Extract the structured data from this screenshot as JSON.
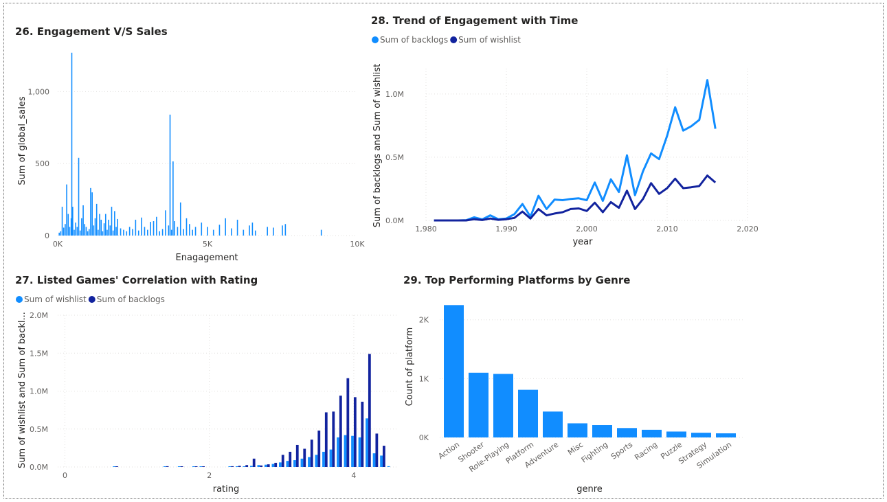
{
  "colors": {
    "light": "#118dff",
    "dark": "#12239e"
  },
  "chart_data": [
    {
      "id": "engagement_vs_sales",
      "type": "bar",
      "title": "26. Engagement V/S Sales",
      "xlabel": "Enagagement",
      "ylabel": "Sum of global_sales",
      "xlim": [
        0,
        10000
      ],
      "ylim": [
        0,
        1350
      ],
      "xticks": [
        {
          "v": 0,
          "label": "0K"
        },
        {
          "v": 5000,
          "label": "5K"
        },
        {
          "v": 10000,
          "label": "10K"
        }
      ],
      "yticks": [
        {
          "v": 0,
          "label": "0"
        },
        {
          "v": 500,
          "label": "500"
        },
        {
          "v": 1000,
          "label": "1,000"
        }
      ],
      "x": [
        50,
        100,
        150,
        200,
        250,
        300,
        350,
        400,
        450,
        470,
        500,
        550,
        600,
        650,
        700,
        750,
        800,
        850,
        900,
        950,
        1000,
        1050,
        1100,
        1150,
        1200,
        1250,
        1300,
        1350,
        1400,
        1450,
        1500,
        1550,
        1600,
        1650,
        1700,
        1750,
        1800,
        1850,
        1900,
        1950,
        2000,
        2100,
        2200,
        2300,
        2400,
        2500,
        2600,
        2700,
        2800,
        2900,
        3000,
        3100,
        3200,
        3300,
        3400,
        3500,
        3600,
        3700,
        3750,
        3800,
        3850,
        3900,
        4000,
        4100,
        4200,
        4300,
        4400,
        4500,
        4600,
        4800,
        5000,
        5200,
        5400,
        5600,
        5800,
        6000,
        6200,
        6400,
        6500,
        6600,
        7000,
        7200,
        7500,
        7600,
        8800
      ],
      "values": [
        20,
        30,
        200,
        55,
        80,
        355,
        150,
        60,
        120,
        1270,
        200,
        40,
        90,
        60,
        540,
        35,
        120,
        210,
        80,
        60,
        30,
        45,
        330,
        300,
        70,
        120,
        220,
        40,
        150,
        110,
        30,
        85,
        150,
        40,
        110,
        70,
        200,
        35,
        170,
        60,
        115,
        50,
        40,
        30,
        60,
        45,
        110,
        35,
        125,
        60,
        40,
        95,
        100,
        130,
        30,
        45,
        175,
        70,
        840,
        40,
        515,
        100,
        60,
        230,
        45,
        120,
        80,
        40,
        60,
        90,
        60,
        40,
        75,
        120,
        50,
        110,
        40,
        70,
        90,
        35,
        60,
        55,
        70,
        80,
        40
      ]
    },
    {
      "id": "engagement_trend",
      "type": "line",
      "title": "28. Trend of Engagement with Time",
      "xlabel": "year",
      "ylabel": "Sum of backlogs and Sum of wishlist",
      "xlim": [
        1980,
        2020
      ],
      "ylim": [
        0,
        1200000
      ],
      "xticks": [
        {
          "v": 1980,
          "label": "1,980"
        },
        {
          "v": 1990,
          "label": "1,990"
        },
        {
          "v": 2000,
          "label": "2,000"
        },
        {
          "v": 2010,
          "label": "2,010"
        },
        {
          "v": 2020,
          "label": "2,020"
        }
      ],
      "yticks": [
        {
          "v": 0,
          "label": "0.0M"
        },
        {
          "v": 500000,
          "label": "0.5M"
        },
        {
          "v": 1000000,
          "label": "1.0M"
        }
      ],
      "legend": "top-left",
      "x": [
        1981,
        1982,
        1983,
        1984,
        1985,
        1986,
        1987,
        1988,
        1989,
        1990,
        1991,
        1992,
        1993,
        1994,
        1995,
        1996,
        1997,
        1998,
        1999,
        2000,
        2001,
        2002,
        2003,
        2004,
        2005,
        2006,
        2007,
        2008,
        2009,
        2010,
        2011,
        2012,
        2013,
        2014,
        2015,
        2016
      ],
      "series": [
        {
          "name": "Sum of backlogs",
          "color": "#118dff",
          "values": [
            0,
            0,
            0,
            0,
            2000,
            25000,
            8000,
            40000,
            10000,
            15000,
            50000,
            130000,
            30000,
            195000,
            90000,
            165000,
            160000,
            170000,
            175000,
            160000,
            300000,
            155000,
            325000,
            225000,
            515000,
            200000,
            390000,
            530000,
            485000,
            670000,
            895000,
            710000,
            745000,
            795000,
            1110000,
            725000
          ]
        },
        {
          "name": "Sum of wishlist",
          "color": "#12239e",
          "values": [
            0,
            0,
            0,
            0,
            0,
            10000,
            3000,
            15000,
            5000,
            10000,
            20000,
            70000,
            15000,
            90000,
            40000,
            55000,
            65000,
            90000,
            95000,
            75000,
            140000,
            65000,
            145000,
            100000,
            235000,
            90000,
            170000,
            295000,
            210000,
            255000,
            330000,
            255000,
            262000,
            272000,
            355000,
            300000
          ]
        }
      ]
    },
    {
      "id": "rating_correlation",
      "type": "bar",
      "title": "27. Listed Games' Correlation with Rating",
      "xlabel": "rating",
      "ylabel": "Sum of wishlist and Sum of backl...",
      "xlim": [
        -0.1,
        4.6
      ],
      "ylim": [
        0,
        2000000
      ],
      "xticks": [
        {
          "v": 0,
          "label": "0"
        },
        {
          "v": 2,
          "label": "2"
        },
        {
          "v": 4,
          "label": "4"
        }
      ],
      "yticks": [
        {
          "v": 0,
          "label": "0.0M"
        },
        {
          "v": 500000,
          "label": "0.5M"
        },
        {
          "v": 1000000,
          "label": "1.0M"
        },
        {
          "v": 1500000,
          "label": "1.5M"
        },
        {
          "v": 2000000,
          "label": "2.0M"
        }
      ],
      "legend": "top-left",
      "x": [
        0.7,
        1.4,
        1.6,
        1.8,
        1.9,
        2.3,
        2.4,
        2.5,
        2.6,
        2.7,
        2.8,
        2.9,
        3.0,
        3.1,
        3.2,
        3.3,
        3.4,
        3.5,
        3.6,
        3.7,
        3.8,
        3.9,
        4.0,
        4.1,
        4.2,
        4.3,
        4.4,
        4.5
      ],
      "series": [
        {
          "name": "Sum of wishlist",
          "color": "#118dff",
          "values": [
            5000,
            4000,
            3000,
            3000,
            2000,
            5000,
            6000,
            8000,
            15000,
            25000,
            30000,
            40000,
            60000,
            80000,
            90000,
            110000,
            130000,
            160000,
            200000,
            230000,
            390000,
            420000,
            410000,
            390000,
            640000,
            180000,
            150000,
            10000
          ]
        },
        {
          "name": "Sum of backlogs",
          "color": "#12239e",
          "values": [
            8000,
            10000,
            8000,
            5000,
            4000,
            10000,
            15000,
            25000,
            110000,
            20000,
            35000,
            55000,
            160000,
            200000,
            290000,
            240000,
            360000,
            480000,
            720000,
            730000,
            940000,
            1170000,
            920000,
            860000,
            1490000,
            440000,
            280000,
            0
          ]
        }
      ]
    },
    {
      "id": "platforms_by_genre",
      "type": "bar",
      "title": "29. Top Performing Platforms by Genre",
      "xlabel": "genre",
      "ylabel": "Count of platform",
      "ylim": [
        0,
        2300
      ],
      "yticks": [
        {
          "v": 0,
          "label": "0K"
        },
        {
          "v": 1000,
          "label": "1K"
        },
        {
          "v": 2000,
          "label": "2K"
        }
      ],
      "categories": [
        "Action",
        "Shooter",
        "Role-Playing",
        "Platform",
        "Adventure",
        "Misc",
        "Fighting",
        "Sports",
        "Racing",
        "Puzzle",
        "Strategy",
        "Simulation"
      ],
      "values": [
        2250,
        1100,
        1080,
        810,
        440,
        240,
        210,
        160,
        130,
        100,
        80,
        70
      ]
    }
  ]
}
